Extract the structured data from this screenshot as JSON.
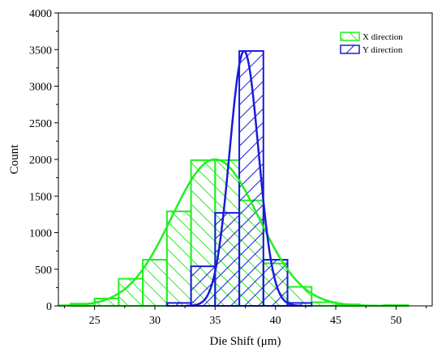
{
  "chart_data": {
    "type": "bar",
    "title": "",
    "xlabel": "Die Shift (μm)",
    "ylabel": "Count",
    "xlim": [
      22,
      53
    ],
    "ylim": [
      0,
      4000
    ],
    "xticks": [
      25,
      30,
      35,
      40,
      45,
      50
    ],
    "yticks": [
      0,
      500,
      1000,
      1500,
      2000,
      2500,
      3000,
      3500,
      4000
    ],
    "bin_width": 2,
    "grid": false,
    "legend_position": "top-right",
    "series": [
      {
        "name": "X direction",
        "color": "#22ee22",
        "hatch": "backslash",
        "bin_centers": [
          24,
          26,
          28,
          30,
          32,
          34,
          36,
          38,
          40,
          42,
          44,
          46,
          48,
          50
        ],
        "values": [
          30,
          100,
          370,
          630,
          1290,
          1990,
          1990,
          1440,
          580,
          260,
          50,
          20,
          0,
          10
        ],
        "fit_curve": {
          "type": "gaussian",
          "peak": 2000,
          "mean": 35.0,
          "sigma": 3.6
        }
      },
      {
        "name": "Y direction",
        "color": "#1a1adc",
        "hatch": "slash",
        "bin_centers": [
          32,
          34,
          36,
          38,
          40,
          42
        ],
        "values": [
          40,
          540,
          1270,
          3480,
          630,
          40
        ],
        "fit_curve": {
          "type": "gaussian",
          "peak": 3480,
          "mean": 37.4,
          "sigma": 1.2
        }
      }
    ]
  }
}
